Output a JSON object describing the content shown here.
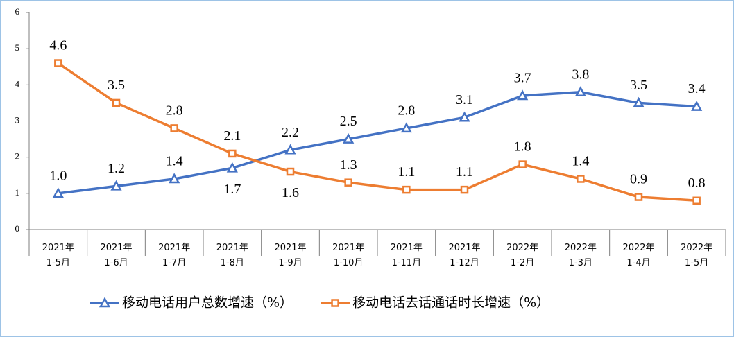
{
  "chart_data": {
    "type": "line",
    "categories": [
      "2021年\n1-5月",
      "2021年\n1-6月",
      "2021年\n1-7月",
      "2021年\n1-8月",
      "2021年\n1-9月",
      "2021年\n1-10月",
      "2021年\n1-11月",
      "2021年\n1-12月",
      "2022年\n1-2月",
      "2022年\n1-3月",
      "2022年\n1-4月",
      "2022年\n1-5月"
    ],
    "series": [
      {
        "name": "移动电话用户总数增速（%）",
        "color": "#4472c4",
        "marker": "triangle",
        "values": [
          1.0,
          1.2,
          1.4,
          1.7,
          2.2,
          2.5,
          2.8,
          3.1,
          3.7,
          3.8,
          3.5,
          3.4
        ],
        "value_labels": [
          "1.0",
          "1.2",
          "1.4",
          "1.7",
          "2.2",
          "2.5",
          "2.8",
          "3.1",
          "3.7",
          "3.8",
          "3.5",
          "3.4"
        ]
      },
      {
        "name": "移动电话去话通话时长增速（%）",
        "color": "#ed7d31",
        "marker": "square",
        "values": [
          4.6,
          3.5,
          2.8,
          2.1,
          1.6,
          1.3,
          1.1,
          1.1,
          1.8,
          1.4,
          0.9,
          0.8
        ],
        "value_labels": [
          "4.6",
          "3.5",
          "2.8",
          "2.1",
          "1.6",
          "1.3",
          "1.1",
          "1.1",
          "1.8",
          "1.4",
          "0.9",
          "0.8"
        ]
      }
    ],
    "ylim": [
      0,
      6
    ],
    "yticks": [
      0,
      1,
      2,
      3,
      4,
      5,
      6
    ],
    "grid": false,
    "legend": "bottom"
  }
}
